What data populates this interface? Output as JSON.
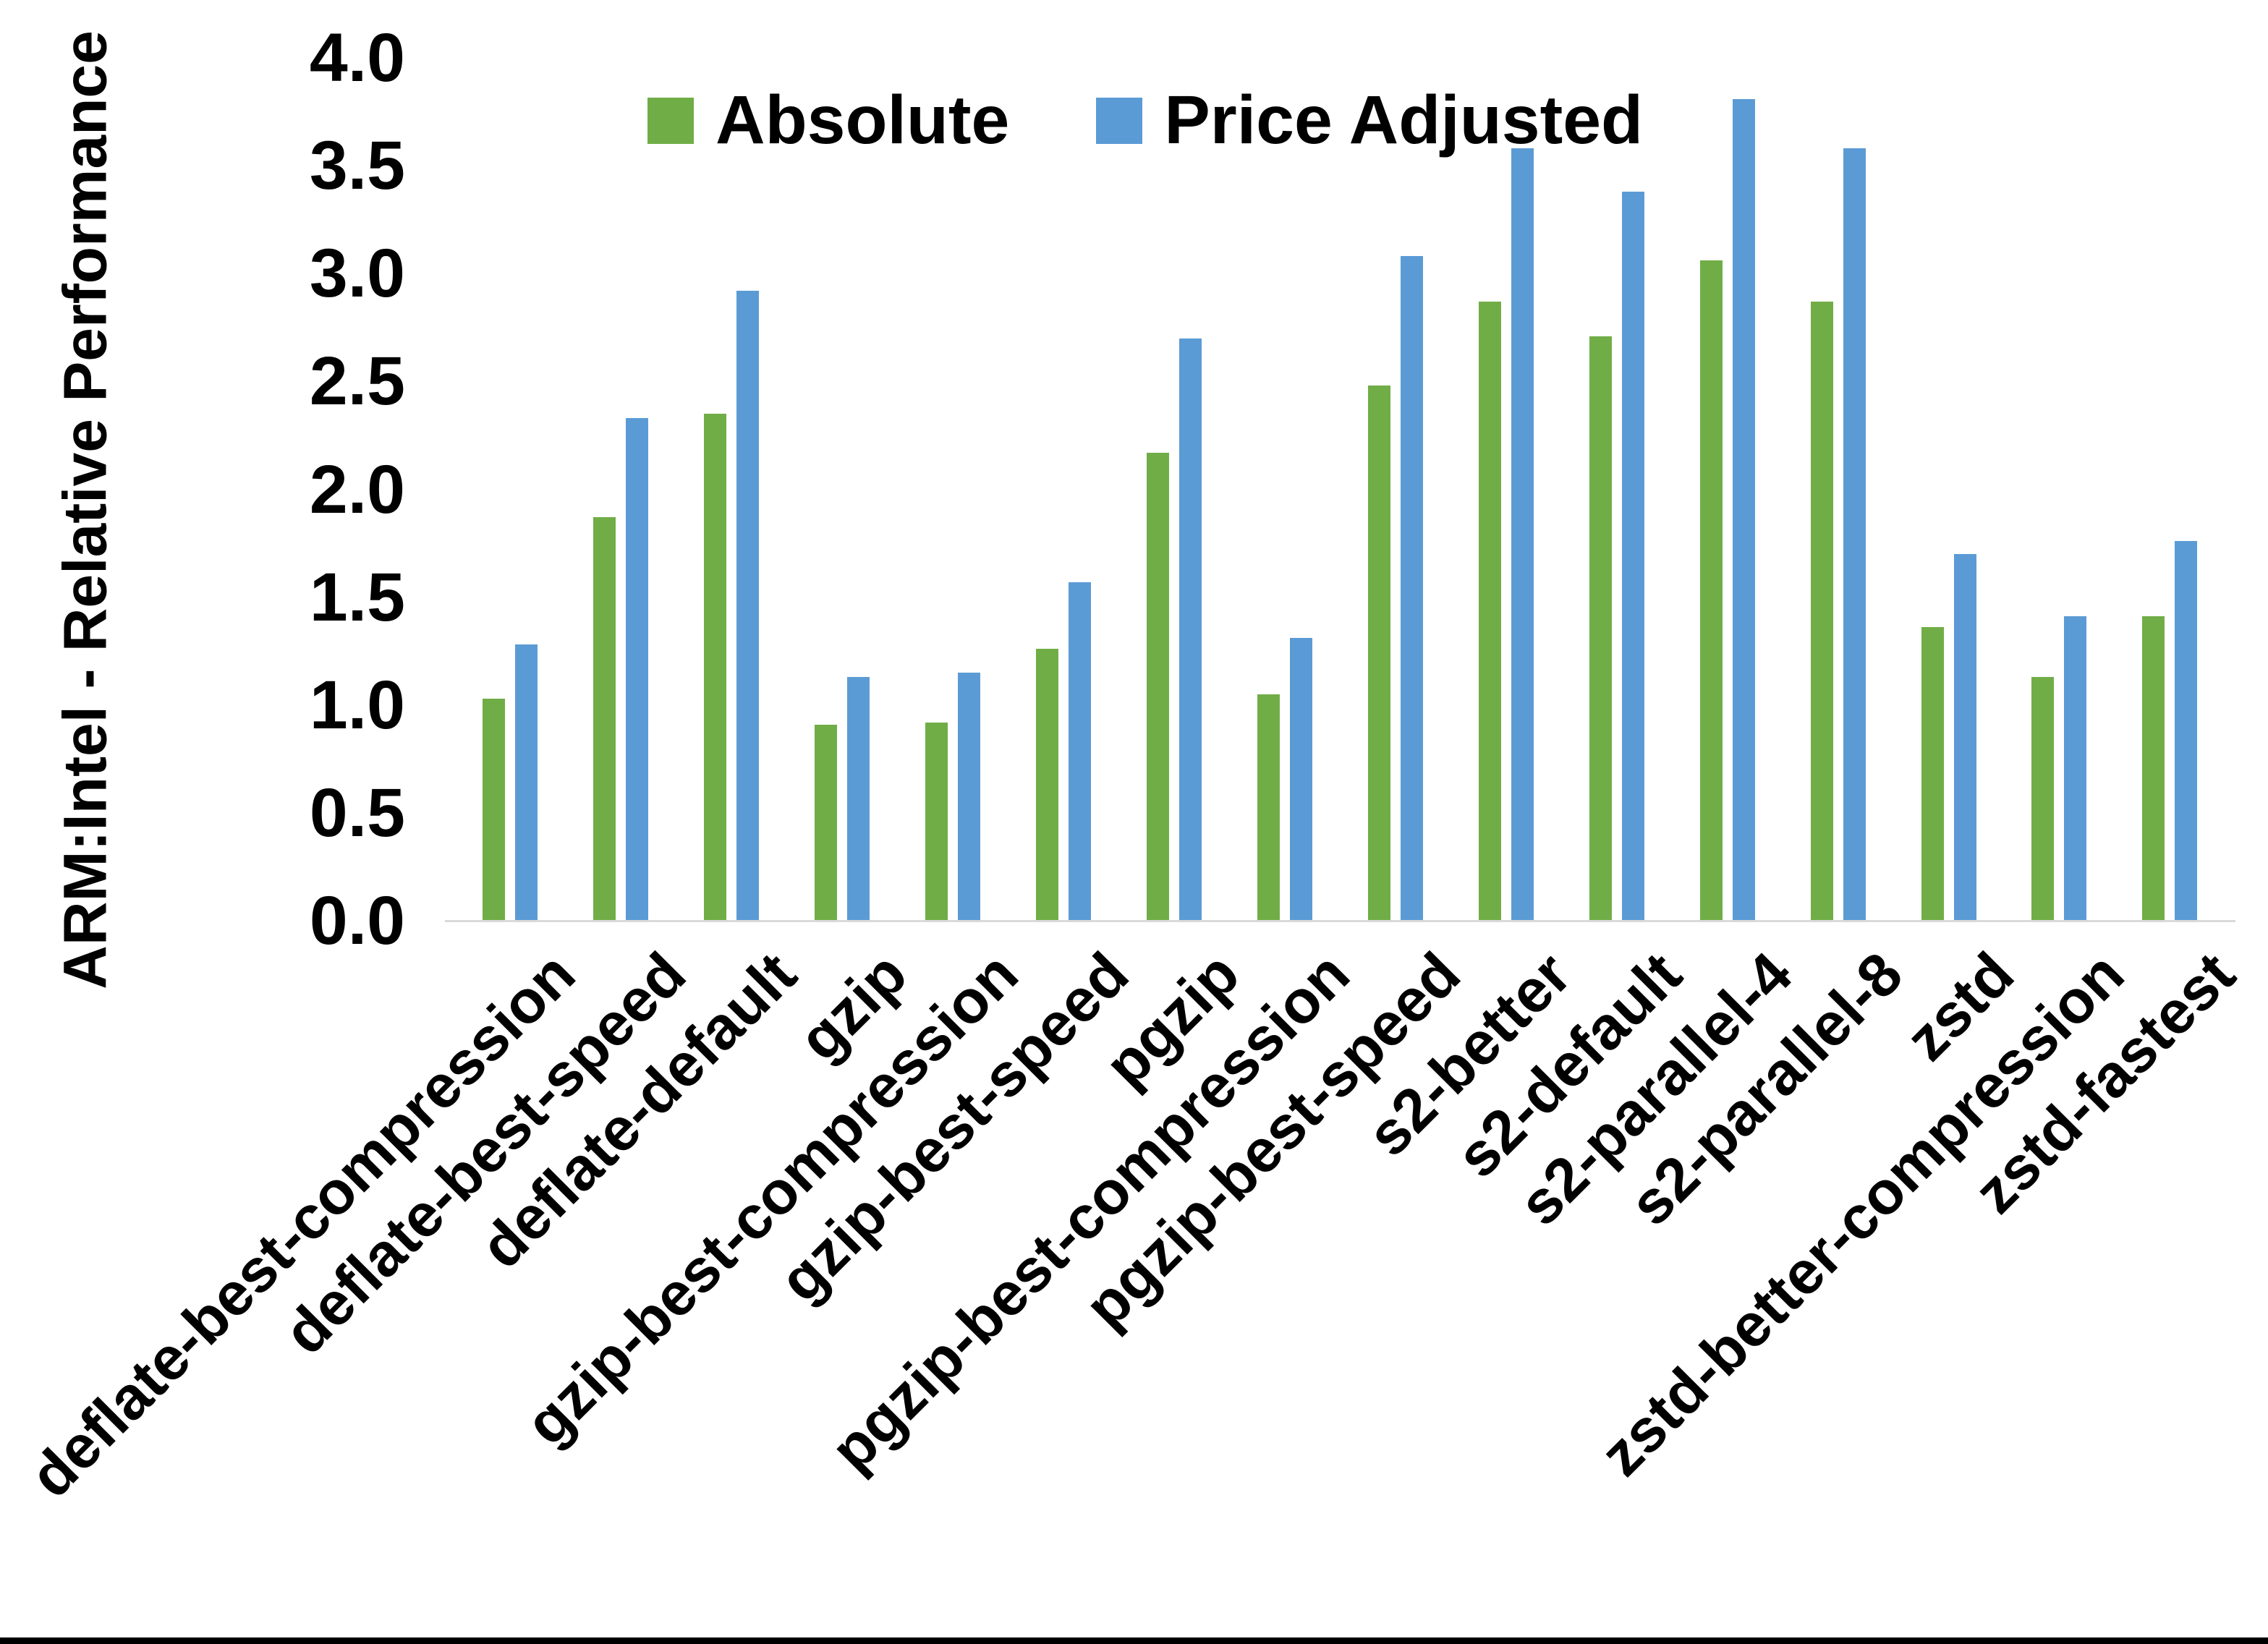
{
  "chart_data": {
    "type": "bar",
    "title": "",
    "ylabel": "ARM:Intel - Relative Performance",
    "xlabel": "",
    "ylim": [
      0.0,
      4.0
    ],
    "ytick_step": 0.5,
    "ytick_labels": [
      "0.0",
      "0.5",
      "1.0",
      "1.5",
      "2.0",
      "2.5",
      "3.0",
      "3.5",
      "4.0"
    ],
    "grid": false,
    "legend_position": "top-center",
    "categories": [
      "deflate-best-compression",
      "deflate-best-speed",
      "deflate-default",
      "gzip",
      "gzip-best-compression",
      "gzip-best-speed",
      "pgzip",
      "pgzip-best-compression",
      "pgzip-best-speed",
      "s2-better",
      "s2-default",
      "s2-parallel-4",
      "s2-parallel-8",
      "zstd",
      "zstd-better-compression",
      "zstd-fastest"
    ],
    "series": [
      {
        "name": "Absolute",
        "color": "#70AD47",
        "values": [
          1.03,
          1.87,
          2.35,
          0.91,
          0.92,
          1.26,
          2.17,
          1.05,
          2.48,
          2.87,
          2.71,
          3.06,
          2.87,
          1.36,
          1.13,
          1.41
        ]
      },
      {
        "name": "Price Adjusted",
        "color": "#5B9BD5",
        "values": [
          1.28,
          2.33,
          2.92,
          1.13,
          1.15,
          1.57,
          2.7,
          1.31,
          3.08,
          3.58,
          3.38,
          3.81,
          3.58,
          1.7,
          1.41,
          1.76
        ]
      }
    ],
    "axis_line_color": "#D9D9D9",
    "text_color": "#000000",
    "background_color": "#FFFFFF",
    "bottom_border_color": "#000000"
  }
}
